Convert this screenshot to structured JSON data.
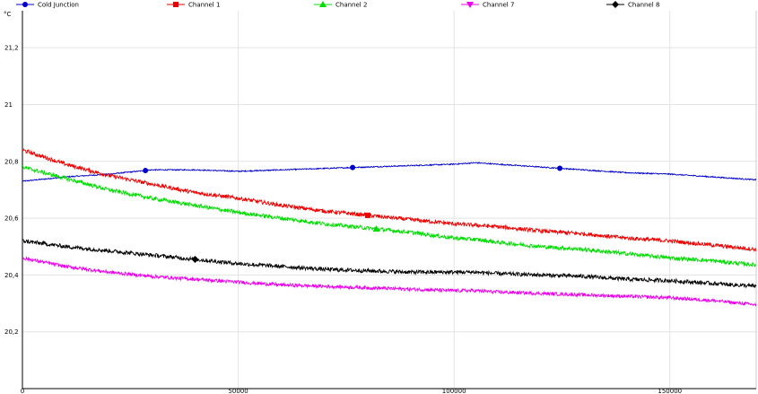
{
  "chart_data": {
    "type": "line",
    "ylabel": "°C",
    "xlabel": "",
    "xlim": [
      0,
      170000
    ],
    "ylim": [
      20.0,
      21.33
    ],
    "grid": true,
    "legend_placement": "top",
    "x_ticks": [
      {
        "value": 0,
        "label": "0"
      },
      {
        "value": 50000,
        "label": "50000"
      },
      {
        "value": 100000,
        "label": "100000"
      },
      {
        "value": 150000,
        "label": "150000"
      }
    ],
    "y_ticks": [
      {
        "value": 20.2,
        "label": "20,2"
      },
      {
        "value": 20.4,
        "label": "20,4"
      },
      {
        "value": 20.6,
        "label": "20,6"
      },
      {
        "value": 20.8,
        "label": "20,8"
      },
      {
        "value": 21.0,
        "label": "21"
      },
      {
        "value": 21.2,
        "label": "21,2"
      }
    ],
    "x": [
      0,
      10000,
      20000,
      30000,
      40000,
      50000,
      60000,
      70000,
      80000,
      90000,
      100000,
      105000,
      110000,
      120000,
      130000,
      140000,
      150000,
      160000,
      170000
    ],
    "series": [
      {
        "name": "Cold Junction",
        "color": "#0000cc",
        "marker": "circle",
        "noise": 0.002,
        "values": [
          20.73,
          20.745,
          20.755,
          20.77,
          20.77,
          20.765,
          20.77,
          20.775,
          20.78,
          20.785,
          20.79,
          20.795,
          20.79,
          20.78,
          20.77,
          20.76,
          20.755,
          20.745,
          20.735
        ],
        "marker_x": [
          28500,
          76500,
          124500
        ]
      },
      {
        "name": "Channel 1",
        "color": "#ee0000",
        "marker": "square",
        "noise": 0.007,
        "values": [
          20.84,
          20.79,
          20.75,
          20.72,
          20.69,
          20.67,
          20.645,
          20.625,
          20.61,
          20.595,
          20.58,
          20.575,
          20.57,
          20.555,
          20.545,
          20.53,
          20.52,
          20.505,
          20.49
        ],
        "marker_x": [
          80000
        ]
      },
      {
        "name": "Channel 2",
        "color": "#00dd00",
        "marker": "triangle-up",
        "noise": 0.007,
        "values": [
          20.78,
          20.74,
          20.7,
          20.67,
          20.645,
          20.62,
          20.6,
          20.58,
          20.565,
          20.55,
          20.53,
          20.525,
          20.515,
          20.5,
          20.49,
          20.475,
          20.46,
          20.45,
          20.435
        ],
        "marker_x": [
          82000
        ]
      },
      {
        "name": "Channel 7",
        "color": "#ee00ee",
        "marker": "triangle-down",
        "noise": 0.006,
        "values": [
          20.46,
          20.43,
          20.41,
          20.395,
          20.385,
          20.375,
          20.365,
          20.36,
          20.355,
          20.35,
          20.345,
          20.345,
          20.34,
          20.335,
          20.33,
          20.325,
          20.32,
          20.31,
          20.295
        ],
        "marker_x": []
      },
      {
        "name": "Channel 8",
        "color": "#000000",
        "marker": "diamond",
        "noise": 0.007,
        "values": [
          20.52,
          20.5,
          20.485,
          20.47,
          20.455,
          20.44,
          20.43,
          20.42,
          20.415,
          20.41,
          20.41,
          20.41,
          20.405,
          20.4,
          20.395,
          20.385,
          20.38,
          20.37,
          20.36
        ],
        "marker_x": [
          40000
        ]
      }
    ]
  }
}
